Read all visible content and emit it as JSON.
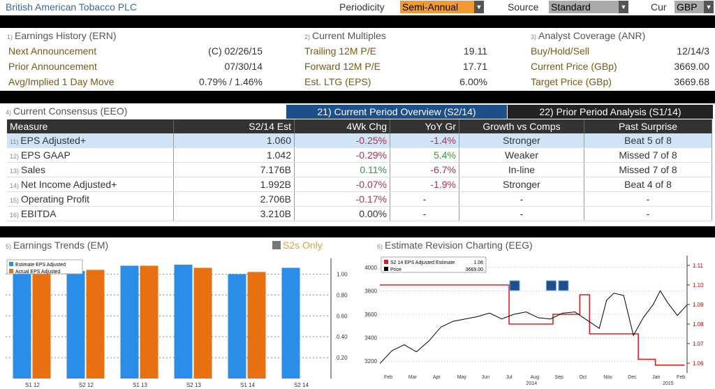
{
  "header": {
    "title": "British American Tobacco PLC",
    "periodicity_label": "Periodicity",
    "periodicity_value": "Semi-Annual",
    "source_label": "Source",
    "source_value": "Standard",
    "cur_label": "Cur",
    "cur_value": "GBP"
  },
  "earnings_history": {
    "num": "1)",
    "title": "Earnings History (ERN)",
    "rows": [
      {
        "label": "Next Announcement",
        "value": "(C)  02/26/15"
      },
      {
        "label": "Prior Announcement",
        "value": "07/30/14"
      },
      {
        "label": "Avg/Implied 1 Day Move",
        "value": "0.79% / 1.46%"
      }
    ]
  },
  "current_multiples": {
    "num": "2)",
    "title": "Current Multiples",
    "rows": [
      {
        "label": "Trailing 12M P/E",
        "value": "19.11"
      },
      {
        "label": "Forward 12M P/E",
        "value": "17.71"
      },
      {
        "label": "Est. LTG (EPS)",
        "value": "6.00%"
      }
    ]
  },
  "analyst_coverage": {
    "num": "3)",
    "title": "Analyst Coverage (ANR)",
    "rows": [
      {
        "label": "Buy/Hold/Sell",
        "value": "12/14/3"
      },
      {
        "label": "Current Price (GBp)",
        "value": "3669.00"
      },
      {
        "label": "Target Price (GBp)",
        "value": "3669.68"
      }
    ]
  },
  "consensus": {
    "num": "4)",
    "title": "Current Consensus (EEO)",
    "tab1": "21) Current Period Overview (S2/14)",
    "tab2": "22) Prior Period Analysis (S1/14)",
    "columns": [
      "Measure",
      "S2/14 Est",
      "4Wk Chg",
      "YoY Gr",
      "Growth vs Comps",
      "Past Surprise"
    ],
    "rows": [
      {
        "num": "11)",
        "measure": "EPS Adjusted+",
        "est": "1.060",
        "chg": "-0.25%",
        "yoy": "-1.4%",
        "comps": "Stronger",
        "surprise": "Beat 5 of 8"
      },
      {
        "num": "12)",
        "measure": "EPS GAAP",
        "est": "1.042",
        "chg": "-0.29%",
        "yoy": "5.4%",
        "comps": "Weaker",
        "surprise": "Missed 7 of 8"
      },
      {
        "num": "13)",
        "measure": "Sales",
        "est": "7.176B",
        "chg": "0.11%",
        "yoy": "-6.7%",
        "comps": "In-line",
        "surprise": "Missed 7 of 8"
      },
      {
        "num": "14)",
        "measure": "Net Income Adjusted+",
        "est": "1.992B",
        "chg": "-0.07%",
        "yoy": "-1.9%",
        "comps": "Stronger",
        "surprise": "Beat 4 of 8"
      },
      {
        "num": "15)",
        "measure": "Operating Profit",
        "est": "2.706B",
        "chg": "-0.17%",
        "yoy": "-",
        "comps": "-",
        "surprise": "-"
      },
      {
        "num": "16)",
        "measure": "EBITDA",
        "est": "3.210B",
        "chg": "0.00%",
        "yoy": "-",
        "comps": "-",
        "surprise": "-"
      }
    ]
  },
  "earnings_trends": {
    "num": "5)",
    "title": "Earnings Trends (EM)",
    "toggle": "S2s Only"
  },
  "revision": {
    "num": "6)",
    "title": "Estimate Revision Charting (EEG)"
  },
  "chart_data": [
    {
      "type": "bar",
      "categories": [
        "S1 12",
        "S2 12",
        "S1 13",
        "S2 13",
        "S1 14",
        "S2 14"
      ],
      "series": [
        {
          "name": "Estimate EPS Adjusted",
          "color": "#2a8de8",
          "values": [
            1.03,
            1.03,
            1.08,
            1.09,
            1.0,
            1.06
          ]
        },
        {
          "name": "Actual EPS Adjusted",
          "color": "#e87010",
          "values": [
            1.03,
            1.04,
            1.08,
            1.06,
            1.02,
            null
          ]
        }
      ],
      "ylim": [
        0,
        1.15
      ],
      "yticks": [
        "0.20",
        "0.40",
        "0.60",
        "0.80",
        "1.00"
      ],
      "legend": "top-left"
    },
    {
      "type": "line",
      "xlabels": [
        "Feb",
        "Mar",
        "Apr",
        "May",
        "Jun",
        "Jul",
        "Aug",
        "Sep",
        "Oct",
        "Nov",
        "Dec",
        "Jan",
        "Feb"
      ],
      "years": [
        "2014",
        "2015"
      ],
      "series": [
        {
          "name": "S2 14 EPS Adjusted Estimate",
          "value_label": "1.06",
          "color": "#e02020",
          "axis": "right",
          "x": [
            0,
            5.3,
            5.3,
            6.0,
            6.0,
            7.1,
            7.1,
            8.2,
            8.2,
            8.6,
            8.6,
            9.2,
            9.2,
            10.6,
            10.6,
            11.3,
            11.3,
            12.5
          ],
          "y": [
            1.1,
            1.1,
            1.08,
            1.08,
            1.08,
            1.08,
            1.085,
            1.085,
            1.095,
            1.095,
            1.075,
            1.075,
            1.075,
            1.075,
            1.062,
            1.062,
            1.059,
            1.059
          ]
        },
        {
          "name": "Price",
          "value_label": "3669.00",
          "color": "#000",
          "axis": "left",
          "x": [
            0,
            0.5,
            1,
            1.5,
            2,
            2.5,
            3,
            3.5,
            4,
            4.5,
            5,
            5.5,
            6,
            6.5,
            7,
            7.5,
            8,
            8.5,
            9,
            9.3,
            9.6,
            10,
            10.4,
            10.8,
            11.2,
            11.5,
            11.8,
            12.2,
            12.6
          ],
          "y": [
            3180,
            3290,
            3340,
            3280,
            3370,
            3490,
            3540,
            3560,
            3580,
            3610,
            3560,
            3600,
            3620,
            3570,
            3560,
            3610,
            3620,
            3550,
            3480,
            3720,
            3780,
            3760,
            3420,
            3570,
            3680,
            3800,
            3700,
            3590,
            3680
          ]
        }
      ],
      "ylim_left": [
        3100,
        4100
      ],
      "yticks_left": [
        "3200",
        "3400",
        "3600",
        "3800",
        "4000"
      ],
      "ylim_right": [
        1.055,
        1.115
      ],
      "yticks_right": [
        "1.06",
        "1.07",
        "1.08",
        "1.09",
        "1.10",
        "1.11"
      ]
    }
  ]
}
